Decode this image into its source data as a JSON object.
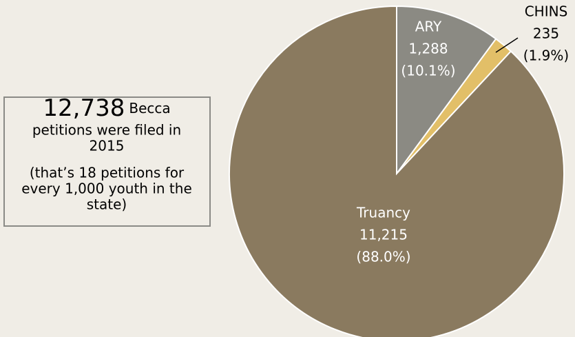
{
  "chart_data": {
    "type": "pie",
    "categories": [
      "ARY",
      "CHINS",
      "Truancy"
    ],
    "values": [
      1288,
      235,
      11215
    ],
    "value_labels": [
      "1,288",
      "235",
      "11,215"
    ],
    "percent_labels": [
      "(10.1%)",
      "(1.9%)",
      "(88.0%)"
    ],
    "colors": [
      "#8b8a83",
      "#e2bf68",
      "#8a7a5f"
    ],
    "annotation": {
      "headline_number": "12,738",
      "headline_lines": [
        "Becca",
        "petitions were filed in",
        "2015"
      ],
      "note_lines": [
        "(that’s 18 petitions for",
        "every 1,000 youth in the",
        "state)"
      ]
    }
  }
}
